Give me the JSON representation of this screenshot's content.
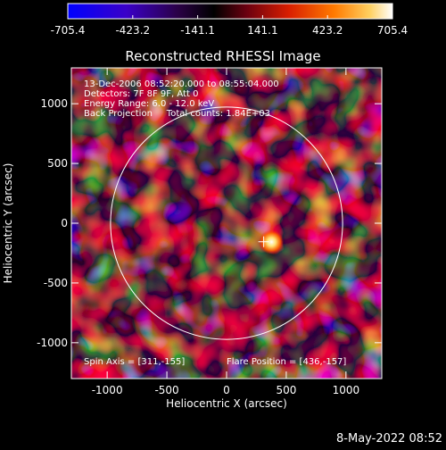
{
  "colorbar": {
    "ticks": [
      "-705.4",
      "-423.2",
      "-141.1",
      "141.1",
      "423.2",
      "705.4"
    ],
    "colors": [
      "#0000ff",
      "#3a00c8",
      "#2a0045",
      "#000000",
      "#6a0010",
      "#d81e00",
      "#ff7a00",
      "#ffd060",
      "#ffffff"
    ]
  },
  "image": {
    "title": "Reconstructed RHESSI Image",
    "x_axis_label": "Heliocentric X (arcsec)",
    "y_axis_label": "Heliocentric Y (arcsec)",
    "x_ticks": [
      "-1000",
      "-500",
      "0",
      "500",
      "1000"
    ],
    "y_ticks": [
      "-1000",
      "-500",
      "0",
      "500",
      "1000"
    ],
    "info_lines": [
      "13-Dec-2006 08:52:20.000 to 08:55:04.000",
      "Detectors: 7F 8F 9F, Att 0",
      "Energy Range: 6.0 - 12.0 keV",
      "Back Projection     Total counts: 1.84E+03"
    ],
    "spin_axis": "Spin Axis = [311,-155]",
    "flare_position": "Flare Position = [436,-157]",
    "solar_disk_radius_arcsec": 972,
    "spin_axis_xy": [
      311,
      -155
    ],
    "flare_xy": [
      436,
      -157
    ]
  },
  "timestamp": "8-May-2022 08:52"
}
